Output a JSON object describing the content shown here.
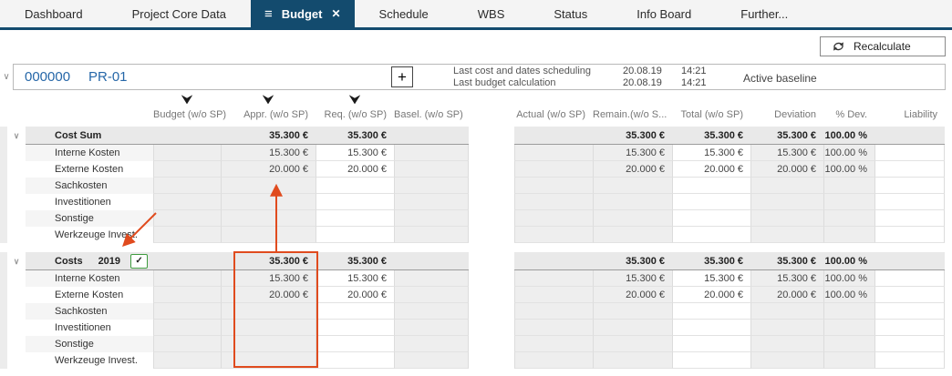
{
  "colors": {
    "accent_navy": "#134b6e",
    "link_blue": "#2667a8",
    "annotation_red": "#e04b1e",
    "checkbox_green": "#3f9c3f"
  },
  "icons": {
    "menu": "≡",
    "close": "✕",
    "plus": "+",
    "chevron_down": "∨",
    "check": "✓"
  },
  "tabs": [
    {
      "label": "Dashboard",
      "active": false
    },
    {
      "label": "Project Core Data",
      "active": false
    },
    {
      "label": "Budget",
      "active": true
    },
    {
      "label": "Schedule",
      "active": false
    },
    {
      "label": "WBS",
      "active": false
    },
    {
      "label": "Status",
      "active": false
    },
    {
      "label": "Info Board",
      "active": false
    },
    {
      "label": "Further...",
      "active": false
    }
  ],
  "toolbar": {
    "recalculate": "Recalculate"
  },
  "project_bar": {
    "number": "000000",
    "code": "PR-01",
    "info": [
      {
        "label": "Last cost and dates scheduling",
        "date": "20.08.19",
        "time": "14:21"
      },
      {
        "label": "Last budget calculation",
        "date": "20.08.19",
        "time": "14:21"
      }
    ],
    "baseline": "Active baseline"
  },
  "table": {
    "left_columns": [
      {
        "label": "Budget (w/o SP)",
        "filter": true
      },
      {
        "label": "Appr. (w/o SP)",
        "filter": true
      },
      {
        "label": "Req. (w/o SP)",
        "filter": true
      },
      {
        "label": "Basel. (w/o SP)",
        "filter": false
      }
    ],
    "right_columns": [
      {
        "label": "Actual (w/o SP)"
      },
      {
        "label": "Remain.(w/o S..."
      },
      {
        "label": "Total (w/o SP)"
      },
      {
        "label": "Deviation"
      },
      {
        "label": "% Dev."
      },
      {
        "label": "Liability"
      }
    ],
    "sections": [
      {
        "title": "Cost Sum",
        "year": "",
        "has_checkbox": false,
        "checkbox_checked": false,
        "cells": [
          "",
          "35.300 €",
          "35.300 €",
          "",
          "",
          "35.300 €",
          "35.300 €",
          "35.300 €",
          "100.00 %",
          ""
        ],
        "rows": [
          {
            "label": "Interne Kosten",
            "cells": [
              "",
              "15.300 €",
              "15.300 €",
              "",
              "",
              "15.300 €",
              "15.300 €",
              "15.300 €",
              "100.00 %",
              ""
            ]
          },
          {
            "label": "Externe Kosten",
            "cells": [
              "",
              "20.000 €",
              "20.000 €",
              "",
              "",
              "20.000 €",
              "20.000 €",
              "20.000 €",
              "100.00 %",
              ""
            ]
          },
          {
            "label": "Sachkosten",
            "cells": [
              "",
              "",
              "",
              "",
              "",
              "",
              "",
              "",
              "",
              ""
            ]
          },
          {
            "label": "Investitionen",
            "cells": [
              "",
              "",
              "",
              "",
              "",
              "",
              "",
              "",
              "",
              ""
            ]
          },
          {
            "label": "Sonstige",
            "cells": [
              "",
              "",
              "",
              "",
              "",
              "",
              "",
              "",
              "",
              ""
            ]
          },
          {
            "label": "Werkzeuge Invest.",
            "cells": [
              "",
              "",
              "",
              "",
              "",
              "",
              "",
              "",
              "",
              ""
            ]
          }
        ]
      },
      {
        "title": "Costs",
        "year": "2019",
        "has_checkbox": true,
        "checkbox_checked": true,
        "cells": [
          "",
          "35.300 €",
          "35.300 €",
          "",
          "",
          "35.300 €",
          "35.300 €",
          "35.300 €",
          "100.00 %",
          ""
        ],
        "rows": [
          {
            "label": "Interne Kosten",
            "cells": [
              "",
              "15.300 €",
              "15.300 €",
              "",
              "",
              "15.300 €",
              "15.300 €",
              "15.300 €",
              "100.00 %",
              ""
            ]
          },
          {
            "label": "Externe Kosten",
            "cells": [
              "",
              "20.000 €",
              "20.000 €",
              "",
              "",
              "20.000 €",
              "20.000 €",
              "20.000 €",
              "100.00 %",
              ""
            ]
          },
          {
            "label": "Sachkosten",
            "cells": [
              "",
              "",
              "",
              "",
              "",
              "",
              "",
              "",
              "",
              ""
            ]
          },
          {
            "label": "Investitionen",
            "cells": [
              "",
              "",
              "",
              "",
              "",
              "",
              "",
              "",
              "",
              ""
            ]
          },
          {
            "label": "Sonstige",
            "cells": [
              "",
              "",
              "",
              "",
              "",
              "",
              "",
              "",
              "",
              ""
            ]
          },
          {
            "label": "Werkzeuge Invest.",
            "cells": [
              "",
              "",
              "",
              "",
              "",
              "",
              "",
              "",
              "",
              ""
            ]
          }
        ]
      }
    ]
  }
}
